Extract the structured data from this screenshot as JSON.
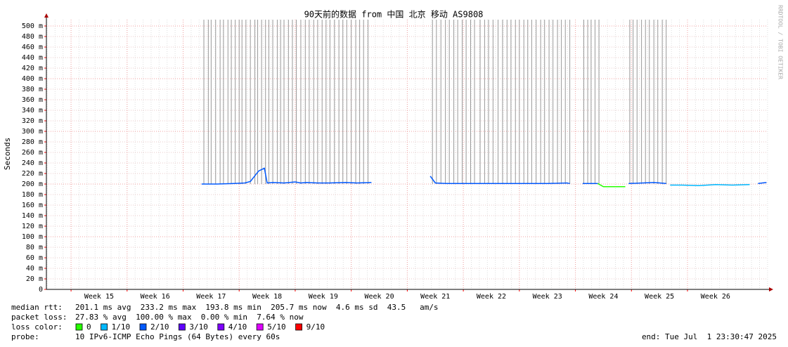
{
  "chart_data": {
    "type": "line",
    "title": "90天前的数据 from 中国 北京 移动 AS9808",
    "y_label": "Seconds",
    "watermark": "RRDTOOL / TOBI OETIKER",
    "ylim": [
      0,
      500
    ],
    "yticks": [
      {
        "value": 0,
        "label": "0"
      },
      {
        "value": 20,
        "label": "20 m"
      },
      {
        "value": 40,
        "label": "40 m"
      },
      {
        "value": 60,
        "label": "60 m"
      },
      {
        "value": 80,
        "label": "80 m"
      },
      {
        "value": 100,
        "label": "100 m"
      },
      {
        "value": 120,
        "label": "120 m"
      },
      {
        "value": 140,
        "label": "140 m"
      },
      {
        "value": 160,
        "label": "160 m"
      },
      {
        "value": 180,
        "label": "180 m"
      },
      {
        "value": 200,
        "label": "200 m"
      },
      {
        "value": 220,
        "label": "220 m"
      },
      {
        "value": 240,
        "label": "240 m"
      },
      {
        "value": 260,
        "label": "260 m"
      },
      {
        "value": 280,
        "label": "280 m"
      },
      {
        "value": 300,
        "label": "300 m"
      },
      {
        "value": 320,
        "label": "320 m"
      },
      {
        "value": 340,
        "label": "340 m"
      },
      {
        "value": 360,
        "label": "360 m"
      },
      {
        "value": 380,
        "label": "380 m"
      },
      {
        "value": 400,
        "label": "400 m"
      },
      {
        "value": 420,
        "label": "420 m"
      },
      {
        "value": 440,
        "label": "440 m"
      },
      {
        "value": 460,
        "label": "460 m"
      },
      {
        "value": 480,
        "label": "480 m"
      },
      {
        "value": 500,
        "label": "500 m"
      }
    ],
    "xlim": [
      14.56,
      27.43
    ],
    "xticks": [
      {
        "value": 15,
        "label": "Week 15"
      },
      {
        "value": 16,
        "label": "Week 16"
      },
      {
        "value": 17,
        "label": "Week 17"
      },
      {
        "value": 18,
        "label": "Week 18"
      },
      {
        "value": 19,
        "label": "Week 19"
      },
      {
        "value": 20,
        "label": "Week 20"
      },
      {
        "value": 21,
        "label": "Week 21"
      },
      {
        "value": 22,
        "label": "Week 22"
      },
      {
        "value": 23,
        "label": "Week 23"
      },
      {
        "value": 24,
        "label": "Week 24"
      },
      {
        "value": 25,
        "label": "Week 25"
      },
      {
        "value": 26,
        "label": "Week 26"
      }
    ],
    "grid": true,
    "x": [
      17.33,
      17.6,
      17.9,
      18.1,
      18.2,
      18.35,
      18.45,
      18.5,
      18.6,
      18.8,
      19.0,
      19.1,
      19.2,
      19.4,
      19.6,
      19.9,
      20.1,
      20.36,
      20.9,
      21.41,
      21.5,
      21.7,
      22.0,
      22.3,
      22.6,
      22.9,
      23.2,
      23.5,
      23.85,
      23.9,
      24.0,
      24.13,
      24.4,
      24.5,
      24.89,
      24.92,
      24.95,
      25.2,
      25.4,
      25.62,
      25.65,
      25.69,
      25.9,
      26.2,
      26.5,
      26.8,
      27.11,
      27.18,
      27.26,
      27.41
    ],
    "series": [
      {
        "color": "#0059ff",
        "values": [
          200,
          200,
          201,
          202,
          205,
          225,
          230,
          202,
          203,
          202,
          204,
          202,
          203,
          202,
          202,
          203,
          202,
          203,
          null,
          215,
          202,
          201,
          201,
          201,
          201,
          201,
          201,
          201,
          202,
          201,
          null,
          201,
          201,
          null,
          null,
          null,
          201,
          202,
          203,
          201,
          null,
          null,
          null,
          null,
          null,
          null,
          null,
          null,
          201,
          203
        ]
      },
      {
        "color": "#26ff00",
        "values": [
          null,
          null,
          null,
          null,
          null,
          null,
          null,
          null,
          null,
          null,
          null,
          null,
          null,
          null,
          null,
          null,
          null,
          null,
          null,
          null,
          null,
          null,
          null,
          null,
          null,
          null,
          null,
          null,
          null,
          null,
          null,
          null,
          201,
          195,
          195,
          null,
          null,
          null,
          null,
          null,
          null,
          null,
          null,
          null,
          null,
          null,
          null,
          null,
          null,
          null
        ]
      },
      {
        "color": "#00b8ff",
        "values": [
          null,
          null,
          null,
          null,
          null,
          null,
          null,
          null,
          null,
          null,
          null,
          null,
          null,
          null,
          null,
          null,
          null,
          null,
          null,
          null,
          null,
          null,
          null,
          null,
          null,
          null,
          null,
          null,
          null,
          null,
          null,
          null,
          null,
          null,
          null,
          null,
          null,
          null,
          null,
          null,
          null,
          198,
          198,
          197,
          199,
          198,
          199,
          null,
          null,
          null
        ]
      }
    ],
    "full_loss_x": [
      17.37,
      17.45,
      17.5,
      17.58,
      17.66,
      17.72,
      17.8,
      17.86,
      17.93,
      18.0,
      18.05,
      18.12,
      18.2,
      18.28,
      18.33,
      18.4,
      18.47,
      18.53,
      18.6,
      18.68,
      18.74,
      18.8,
      18.88,
      18.95,
      19.02,
      19.1,
      19.18,
      19.25,
      19.33,
      19.4,
      19.48,
      19.55,
      19.62,
      19.7,
      19.78,
      19.85,
      19.92,
      20.0,
      20.08,
      20.15,
      20.22,
      20.3,
      21.45,
      21.52,
      21.6,
      21.68,
      21.75,
      21.83,
      21.9,
      21.98,
      22.05,
      22.13,
      22.2,
      22.3,
      22.38,
      22.45,
      22.53,
      22.62,
      22.7,
      22.78,
      22.85,
      22.93,
      23.0,
      23.08,
      23.15,
      23.22,
      23.3,
      23.38,
      23.45,
      23.53,
      23.6,
      23.68,
      23.75,
      23.82,
      23.9,
      24.15,
      24.22,
      24.28,
      24.35,
      24.42,
      24.97,
      25.03,
      25.1,
      25.18,
      25.25,
      25.32,
      25.4,
      25.47,
      25.55,
      25.62
    ],
    "stats": [
      {
        "label": "median rtt:",
        "text": "201.1 ms avg  233.2 ms max  193.8 ms min  205.7 ms now  4.6 ms sd  43.5   am/s"
      },
      {
        "label": "packet loss:",
        "text": "27.83 % avg  100.00 % max  0.00 % min  7.64 % now"
      }
    ],
    "loss_color": {
      "label": "loss color:",
      "items": [
        {
          "label": "0",
          "color": "#26ff00"
        },
        {
          "label": "1/10",
          "color": "#00b8ff"
        },
        {
          "label": "2/10",
          "color": "#0059ff"
        },
        {
          "label": "3/10",
          "color": "#5e00ff"
        },
        {
          "label": "4/10",
          "color": "#7e00ff"
        },
        {
          "label": "5/10",
          "color": "#dd00ff"
        },
        {
          "label": "9/10",
          "color": "#ff0000"
        }
      ]
    },
    "probe": {
      "label": "probe:",
      "text": "10 IPv6-ICMP Echo Pings (64 Bytes) every 60s"
    },
    "end": "end: Tue Jul  1 23:30:47 2025"
  }
}
